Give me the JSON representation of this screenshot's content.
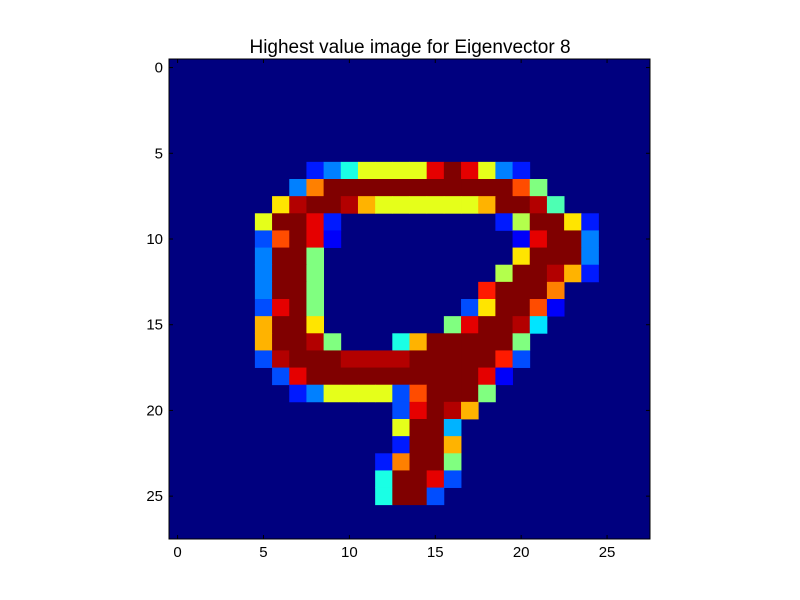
{
  "chart_data": {
    "type": "heatmap",
    "title": "Highest value image for Eigenvector 8",
    "colormap": "jet",
    "value_range": [
      0,
      1
    ],
    "background": "#00007f",
    "x_ticks": [
      0,
      5,
      10,
      15,
      20,
      25
    ],
    "y_ticks": [
      0,
      5,
      10,
      15,
      20,
      25
    ],
    "xlim": [
      -0.5,
      27.5
    ],
    "ylim": [
      27.5,
      -0.5
    ],
    "rows": 28,
    "cols": 28,
    "cells": [
      [
        6,
        8,
        0.15
      ],
      [
        6,
        9,
        0.25
      ],
      [
        6,
        10,
        0.4
      ],
      [
        6,
        11,
        0.6
      ],
      [
        6,
        12,
        0.6
      ],
      [
        6,
        13,
        0.6
      ],
      [
        6,
        14,
        0.6
      ],
      [
        6,
        15,
        0.9
      ],
      [
        6,
        16,
        1.0
      ],
      [
        6,
        17,
        0.9
      ],
      [
        6,
        18,
        0.6
      ],
      [
        6,
        19,
        0.25
      ],
      [
        6,
        20,
        0.15
      ],
      [
        7,
        7,
        0.25
      ],
      [
        7,
        8,
        0.75
      ],
      [
        7,
        9,
        1.0
      ],
      [
        7,
        10,
        1.0
      ],
      [
        7,
        11,
        1.0
      ],
      [
        7,
        12,
        1.0
      ],
      [
        7,
        13,
        1.0
      ],
      [
        7,
        14,
        1.0
      ],
      [
        7,
        15,
        1.0
      ],
      [
        7,
        16,
        1.0
      ],
      [
        7,
        17,
        1.0
      ],
      [
        7,
        18,
        1.0
      ],
      [
        7,
        19,
        1.0
      ],
      [
        7,
        20,
        0.8
      ],
      [
        7,
        21,
        0.5
      ],
      [
        8,
        6,
        0.65
      ],
      [
        8,
        7,
        0.95
      ],
      [
        8,
        8,
        1.0
      ],
      [
        8,
        9,
        1.0
      ],
      [
        8,
        10,
        0.95
      ],
      [
        8,
        11,
        0.7
      ],
      [
        8,
        12,
        0.6
      ],
      [
        8,
        13,
        0.6
      ],
      [
        8,
        14,
        0.6
      ],
      [
        8,
        15,
        0.6
      ],
      [
        8,
        16,
        0.6
      ],
      [
        8,
        17,
        0.6
      ],
      [
        8,
        18,
        0.7
      ],
      [
        8,
        19,
        1.0
      ],
      [
        8,
        20,
        1.0
      ],
      [
        8,
        21,
        0.95
      ],
      [
        8,
        22,
        0.45
      ],
      [
        9,
        5,
        0.6
      ],
      [
        9,
        6,
        1.0
      ],
      [
        9,
        7,
        1.0
      ],
      [
        9,
        8,
        0.9
      ],
      [
        9,
        9,
        0.15
      ],
      [
        9,
        19,
        0.15
      ],
      [
        9,
        20,
        0.55
      ],
      [
        9,
        21,
        1.0
      ],
      [
        9,
        22,
        1.0
      ],
      [
        9,
        23,
        0.65
      ],
      [
        9,
        24,
        0.15
      ],
      [
        10,
        5,
        0.2
      ],
      [
        10,
        6,
        0.8
      ],
      [
        10,
        7,
        1.0
      ],
      [
        10,
        8,
        0.9
      ],
      [
        10,
        9,
        0.12
      ],
      [
        10,
        20,
        0.12
      ],
      [
        10,
        21,
        0.9
      ],
      [
        10,
        22,
        1.0
      ],
      [
        10,
        23,
        1.0
      ],
      [
        10,
        24,
        0.25
      ],
      [
        11,
        5,
        0.25
      ],
      [
        11,
        6,
        1.0
      ],
      [
        11,
        7,
        1.0
      ],
      [
        11,
        8,
        0.5
      ],
      [
        11,
        20,
        0.65
      ],
      [
        11,
        21,
        1.0
      ],
      [
        11,
        22,
        1.0
      ],
      [
        11,
        23,
        1.0
      ],
      [
        11,
        24,
        0.25
      ],
      [
        12,
        5,
        0.25
      ],
      [
        12,
        6,
        1.0
      ],
      [
        12,
        7,
        1.0
      ],
      [
        12,
        8,
        0.5
      ],
      [
        12,
        19,
        0.55
      ],
      [
        12,
        20,
        1.0
      ],
      [
        12,
        21,
        1.0
      ],
      [
        12,
        22,
        0.95
      ],
      [
        12,
        23,
        0.7
      ],
      [
        12,
        24,
        0.15
      ],
      [
        13,
        5,
        0.25
      ],
      [
        13,
        6,
        1.0
      ],
      [
        13,
        7,
        1.0
      ],
      [
        13,
        8,
        0.5
      ],
      [
        13,
        18,
        0.85
      ],
      [
        13,
        19,
        1.0
      ],
      [
        13,
        20,
        1.0
      ],
      [
        13,
        21,
        1.0
      ],
      [
        13,
        22,
        0.75
      ],
      [
        14,
        5,
        0.2
      ],
      [
        14,
        6,
        0.9
      ],
      [
        14,
        7,
        1.0
      ],
      [
        14,
        8,
        0.5
      ],
      [
        14,
        17,
        0.2
      ],
      [
        14,
        18,
        0.65
      ],
      [
        14,
        19,
        1.0
      ],
      [
        14,
        20,
        1.0
      ],
      [
        14,
        21,
        0.8
      ],
      [
        14,
        22,
        0.12
      ],
      [
        15,
        5,
        0.7
      ],
      [
        15,
        6,
        1.0
      ],
      [
        15,
        7,
        1.0
      ],
      [
        15,
        8,
        0.65
      ],
      [
        15,
        16,
        0.5
      ],
      [
        15,
        17,
        0.9
      ],
      [
        15,
        18,
        1.0
      ],
      [
        15,
        19,
        1.0
      ],
      [
        15,
        20,
        0.95
      ],
      [
        15,
        21,
        0.35
      ],
      [
        16,
        5,
        0.7
      ],
      [
        16,
        6,
        1.0
      ],
      [
        16,
        7,
        1.0
      ],
      [
        16,
        8,
        0.95
      ],
      [
        16,
        9,
        0.5
      ],
      [
        16,
        13,
        0.4
      ],
      [
        16,
        14,
        0.7
      ],
      [
        16,
        15,
        1.0
      ],
      [
        16,
        16,
        1.0
      ],
      [
        16,
        17,
        1.0
      ],
      [
        16,
        18,
        1.0
      ],
      [
        16,
        19,
        1.0
      ],
      [
        16,
        20,
        0.5
      ],
      [
        17,
        5,
        0.2
      ],
      [
        17,
        6,
        0.95
      ],
      [
        17,
        7,
        1.0
      ],
      [
        17,
        8,
        1.0
      ],
      [
        17,
        9,
        1.0
      ],
      [
        17,
        10,
        0.95
      ],
      [
        17,
        11,
        0.95
      ],
      [
        17,
        12,
        0.95
      ],
      [
        17,
        13,
        0.95
      ],
      [
        17,
        14,
        1.0
      ],
      [
        17,
        15,
        1.0
      ],
      [
        17,
        16,
        1.0
      ],
      [
        17,
        17,
        1.0
      ],
      [
        17,
        18,
        1.0
      ],
      [
        17,
        19,
        0.85
      ],
      [
        17,
        20,
        0.2
      ],
      [
        18,
        6,
        0.2
      ],
      [
        18,
        7,
        0.9
      ],
      [
        18,
        8,
        1.0
      ],
      [
        18,
        9,
        1.0
      ],
      [
        18,
        10,
        1.0
      ],
      [
        18,
        11,
        1.0
      ],
      [
        18,
        12,
        1.0
      ],
      [
        18,
        13,
        1.0
      ],
      [
        18,
        14,
        1.0
      ],
      [
        18,
        15,
        1.0
      ],
      [
        18,
        16,
        1.0
      ],
      [
        18,
        17,
        1.0
      ],
      [
        18,
        18,
        0.9
      ],
      [
        18,
        19,
        0.12
      ],
      [
        19,
        7,
        0.15
      ],
      [
        19,
        8,
        0.25
      ],
      [
        19,
        9,
        0.6
      ],
      [
        19,
        10,
        0.6
      ],
      [
        19,
        11,
        0.6
      ],
      [
        19,
        12,
        0.6
      ],
      [
        19,
        13,
        0.2
      ],
      [
        19,
        14,
        0.8
      ],
      [
        19,
        15,
        1.0
      ],
      [
        19,
        16,
        1.0
      ],
      [
        19,
        17,
        1.0
      ],
      [
        19,
        18,
        0.5
      ],
      [
        20,
        13,
        0.2
      ],
      [
        20,
        14,
        0.9
      ],
      [
        20,
        15,
        1.0
      ],
      [
        20,
        16,
        0.95
      ],
      [
        20,
        17,
        0.7
      ],
      [
        21,
        13,
        0.6
      ],
      [
        21,
        14,
        1.0
      ],
      [
        21,
        15,
        1.0
      ],
      [
        21,
        16,
        0.3
      ],
      [
        22,
        13,
        0.15
      ],
      [
        22,
        14,
        1.0
      ],
      [
        22,
        15,
        1.0
      ],
      [
        22,
        16,
        0.7
      ],
      [
        23,
        12,
        0.15
      ],
      [
        23,
        13,
        0.75
      ],
      [
        23,
        14,
        1.0
      ],
      [
        23,
        15,
        1.0
      ],
      [
        23,
        16,
        0.5
      ],
      [
        24,
        12,
        0.4
      ],
      [
        24,
        13,
        1.0
      ],
      [
        24,
        14,
        1.0
      ],
      [
        24,
        15,
        0.9
      ],
      [
        24,
        16,
        0.2
      ],
      [
        25,
        12,
        0.4
      ],
      [
        25,
        13,
        1.0
      ],
      [
        25,
        14,
        1.0
      ],
      [
        25,
        15,
        0.2
      ]
    ]
  }
}
